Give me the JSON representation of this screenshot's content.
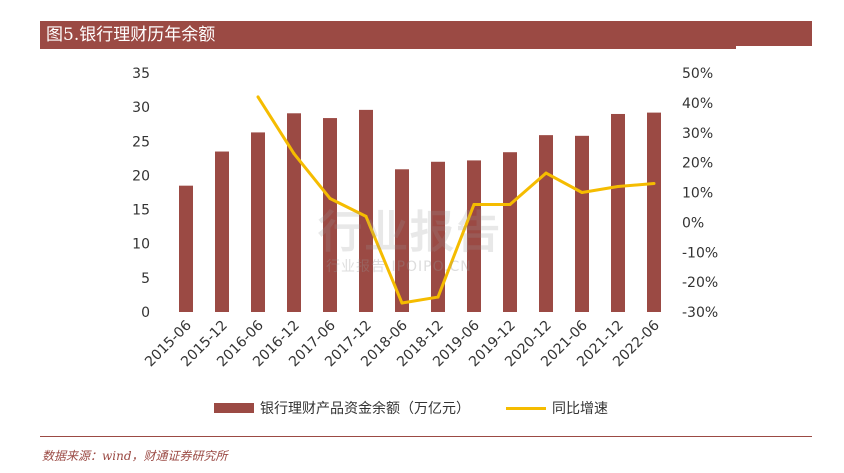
{
  "title": "图5.银行理财历年余额",
  "watermark": {
    "main": "行业报告",
    "sub": "行业报告 IPOIPO.CN"
  },
  "source": "数据来源：wind，财通证券研究所",
  "colors": {
    "bar": "#9b4a44",
    "line": "#f5bc00",
    "axis_text": "#333333"
  },
  "chart_data": {
    "type": "bar",
    "categories": [
      "2015-06",
      "2015-12",
      "2016-06",
      "2016-12",
      "2017-06",
      "2017-12",
      "2018-06",
      "2018-12",
      "2019-06",
      "2019-12",
      "2020-12",
      "2021-06",
      "2021-12",
      "2022-06"
    ],
    "series": [
      {
        "name": "银行理财产品资金余额（万亿元）",
        "type": "bar",
        "axis": "left",
        "values": [
          18.5,
          23.5,
          26.3,
          29.1,
          28.4,
          29.6,
          20.9,
          22.0,
          22.2,
          23.4,
          25.9,
          25.8,
          29.0,
          29.2
        ]
      },
      {
        "name": "同比增速",
        "type": "line",
        "axis": "right",
        "values": [
          null,
          null,
          42,
          23,
          8,
          2,
          -27,
          -25,
          6,
          6,
          16.5,
          10,
          12,
          13
        ]
      }
    ],
    "y_left": {
      "min": 0,
      "max": 35,
      "ticks": [
        "0",
        "5",
        "10",
        "15",
        "20",
        "25",
        "30",
        "35"
      ]
    },
    "y_right": {
      "min": -30,
      "max": 50,
      "ticks": [
        "-30%",
        "-20%",
        "-10%",
        "0%",
        "10%",
        "20%",
        "30%",
        "40%",
        "50%"
      ]
    },
    "legend": "bottom",
    "grid": false
  }
}
